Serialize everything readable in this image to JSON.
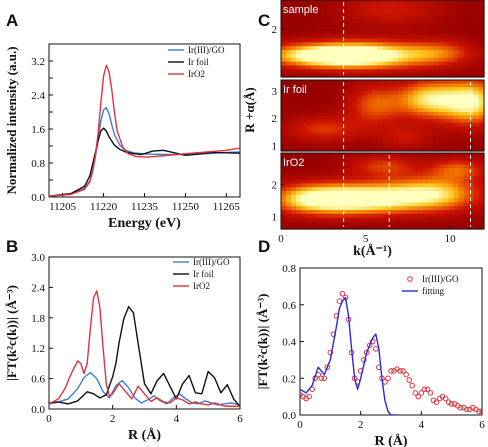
{
  "chart_data": [
    {
      "id": "A",
      "type": "line",
      "panel_label": "A",
      "xlabel": "Energy (eV)",
      "ylabel": "Normalized intensity (a.u.)",
      "xlim": [
        11200,
        11270
      ],
      "ylim": [
        0,
        3.6
      ],
      "xticks": [
        11205,
        11220,
        11235,
        11250,
        11265
      ],
      "yticks": [
        0.0,
        0.4,
        0.8,
        1.2,
        1.6,
        2.0,
        2.4,
        2.8,
        3.2
      ],
      "ytick_labels": [
        "0.0",
        "",
        "0.8",
        "",
        "1.6",
        "",
        "2.4",
        "",
        "3.2"
      ],
      "legend_position": "top-right",
      "series": [
        {
          "name": "Ir(III)/GO",
          "color": "#3b7fd4",
          "x": [
            11200,
            11208,
            11213,
            11215,
            11216,
            11217,
            11218,
            11219,
            11220,
            11221,
            11222,
            11223,
            11224,
            11226,
            11228,
            11231,
            11236,
            11242,
            11250,
            11258,
            11265,
            11270
          ],
          "y": [
            0.02,
            0.07,
            0.2,
            0.38,
            0.62,
            0.95,
            1.35,
            1.78,
            2.05,
            2.1,
            1.96,
            1.7,
            1.46,
            1.22,
            1.1,
            1.04,
            1.01,
            1.0,
            1.0,
            1.02,
            1.05,
            1.06
          ]
        },
        {
          "name": "Ir foil",
          "color": "#111111",
          "x": [
            11200,
            11208,
            11213,
            11215,
            11216,
            11217,
            11218,
            11219,
            11220,
            11221,
            11222,
            11224,
            11226,
            11228,
            11231,
            11234,
            11238,
            11242,
            11246,
            11250,
            11255,
            11260,
            11265,
            11270
          ],
          "y": [
            0.02,
            0.08,
            0.25,
            0.5,
            0.78,
            1.05,
            1.32,
            1.55,
            1.62,
            1.55,
            1.42,
            1.22,
            1.12,
            1.06,
            1.02,
            1.0,
            1.08,
            1.1,
            1.04,
            0.98,
            1.01,
            1.05,
            1.04,
            1.03
          ]
        },
        {
          "name": "IrO2",
          "color": "#e0343c",
          "x": [
            11200,
            11208,
            11213,
            11215,
            11216,
            11217,
            11218,
            11219,
            11220,
            11221,
            11222,
            11223,
            11224,
            11225,
            11227,
            11229,
            11232,
            11236,
            11242,
            11250,
            11258,
            11265,
            11270
          ],
          "y": [
            0.02,
            0.06,
            0.18,
            0.36,
            0.6,
            0.98,
            1.5,
            2.2,
            2.85,
            3.1,
            2.95,
            2.52,
            1.98,
            1.55,
            1.18,
            1.02,
            0.95,
            0.94,
            0.97,
            1.02,
            1.06,
            1.1,
            1.15
          ]
        }
      ]
    },
    {
      "id": "B",
      "type": "line",
      "panel_label": "B",
      "xlabel": "R (Å)",
      "ylabel": "|FT(k²c(k))| (Å⁻³)",
      "xlim": [
        0,
        6
      ],
      "ylim": [
        0,
        3.0
      ],
      "xticks": [
        0,
        2,
        4,
        6
      ],
      "yticks": [
        0.0,
        0.6,
        1.2,
        1.8,
        2.4,
        3.0
      ],
      "ytick_labels": [
        "0.0",
        "0.6",
        "1.2",
        "1.8",
        "2.4",
        "3.0"
      ],
      "legend_position": "top-right",
      "series": [
        {
          "name": "Ir(III)/GO",
          "color": "#3b7fd4",
          "x": [
            0,
            0.3,
            0.6,
            0.9,
            1.1,
            1.3,
            1.5,
            1.7,
            1.9,
            2.1,
            2.3,
            2.5,
            2.7,
            2.9,
            3.1,
            3.3,
            3.5,
            3.7,
            3.9,
            4.1,
            4.3,
            4.5,
            4.7,
            4.9,
            5.1,
            5.3,
            5.5,
            5.7,
            6.0
          ],
          "y": [
            0.1,
            0.14,
            0.2,
            0.4,
            0.62,
            0.72,
            0.6,
            0.34,
            0.22,
            0.46,
            0.56,
            0.42,
            0.22,
            0.12,
            0.18,
            0.26,
            0.16,
            0.1,
            0.22,
            0.3,
            0.2,
            0.12,
            0.1,
            0.16,
            0.12,
            0.08,
            0.1,
            0.12,
            0.08
          ]
        },
        {
          "name": "Ir foil",
          "color": "#111111",
          "x": [
            0,
            0.3,
            0.6,
            0.9,
            1.2,
            1.4,
            1.6,
            1.8,
            2.0,
            2.1,
            2.2,
            2.35,
            2.5,
            2.65,
            2.8,
            3.0,
            3.2,
            3.4,
            3.6,
            3.8,
            4.0,
            4.2,
            4.4,
            4.6,
            4.8,
            5.0,
            5.2,
            5.4,
            5.6,
            5.8,
            6.0
          ],
          "y": [
            0.12,
            0.14,
            0.1,
            0.16,
            0.34,
            0.3,
            0.22,
            0.28,
            0.64,
            0.9,
            1.3,
            1.78,
            2.02,
            1.9,
            1.3,
            0.5,
            0.3,
            0.56,
            0.7,
            0.45,
            0.2,
            0.5,
            0.66,
            0.32,
            0.3,
            0.74,
            0.62,
            0.32,
            0.48,
            0.2,
            0.05
          ]
        },
        {
          "name": "IrO2",
          "color": "#e0343c",
          "x": [
            0,
            0.3,
            0.5,
            0.7,
            0.9,
            1.0,
            1.1,
            1.2,
            1.3,
            1.4,
            1.5,
            1.6,
            1.7,
            1.8,
            1.9,
            2.0,
            2.2,
            2.4,
            2.6,
            2.8,
            3.0,
            3.2,
            3.4,
            3.6,
            3.8,
            4.0,
            4.2,
            4.4,
            4.6,
            4.8,
            5.0,
            5.2,
            5.5,
            6.0
          ],
          "y": [
            0.1,
            0.2,
            0.4,
            0.7,
            0.95,
            0.9,
            0.7,
            0.9,
            1.6,
            2.2,
            2.33,
            2.0,
            1.2,
            0.5,
            0.25,
            0.3,
            0.5,
            0.35,
            0.2,
            0.45,
            0.3,
            0.15,
            0.22,
            0.14,
            0.12,
            0.22,
            0.18,
            0.1,
            0.14,
            0.1,
            0.08,
            0.12,
            0.06,
            0.05
          ]
        }
      ]
    },
    {
      "id": "C",
      "type": "heatmap",
      "panel_label": "C",
      "xlabel": "k(Å⁻¹)",
      "ylabel": "R +α(Å)",
      "xlim": [
        0,
        12
      ],
      "xticks": [
        0,
        5,
        10
      ],
      "subpanels": [
        {
          "label": "sample",
          "ylim": [
            1,
            2.6
          ],
          "yticks": [
            1,
            2
          ],
          "blobs": [
            {
              "x": 2.5,
              "y": 1.45,
              "sx": 2.6,
              "sy": 0.18,
              "v": 1.0
            },
            {
              "x": 5.5,
              "y": 1.45,
              "sx": 2.5,
              "sy": 0.22,
              "v": 0.75
            },
            {
              "x": 9.5,
              "y": 1.5,
              "sx": 1.5,
              "sy": 0.2,
              "v": 0.45
            },
            {
              "x": 6.5,
              "y": 2.4,
              "sx": 2.2,
              "sy": 0.25,
              "v": 0.35
            }
          ],
          "dashes": [
            3.7
          ]
        },
        {
          "label": "Ir foil",
          "ylim": [
            0.8,
            3.4
          ],
          "yticks": [
            1,
            2,
            3
          ],
          "blobs": [
            {
              "x": 11.2,
              "y": 2.6,
              "sx": 1.3,
              "sy": 0.6,
              "v": 1.0
            },
            {
              "x": 8.6,
              "y": 2.7,
              "sx": 1.2,
              "sy": 0.5,
              "v": 0.8
            },
            {
              "x": 5.6,
              "y": 2.5,
              "sx": 1.2,
              "sy": 0.55,
              "v": 0.55
            },
            {
              "x": 2.5,
              "y": 1.6,
              "sx": 1.6,
              "sy": 0.35,
              "v": 0.45
            },
            {
              "x": 7.4,
              "y": 1.3,
              "sx": 1.2,
              "sy": 0.3,
              "v": 0.3
            }
          ],
          "dashes": [
            3.7,
            11.2
          ]
        },
        {
          "label": "IrO2",
          "ylim": [
            0.6,
            3.0
          ],
          "yticks": [
            1,
            2
          ],
          "blobs": [
            {
              "x": 1.8,
              "y": 1.55,
              "sx": 1.8,
              "sy": 0.35,
              "v": 0.9
            },
            {
              "x": 5.0,
              "y": 1.55,
              "sx": 2.0,
              "sy": 0.35,
              "v": 1.0
            },
            {
              "x": 9.0,
              "y": 1.7,
              "sx": 2.0,
              "sy": 0.4,
              "v": 0.9
            },
            {
              "x": 6.0,
              "y": 2.6,
              "sx": 1.5,
              "sy": 0.25,
              "v": 0.45
            },
            {
              "x": 10.5,
              "y": 2.5,
              "sx": 1.2,
              "sy": 0.25,
              "v": 0.5
            }
          ],
          "dashes": [
            3.7,
            6.4,
            11.2
          ]
        }
      ]
    },
    {
      "id": "D",
      "type": "line",
      "panel_label": "D",
      "xlabel": "R (Å)",
      "ylabel": "|FT(k²c(k))| (Å⁻³)",
      "xlim": [
        0,
        6
      ],
      "ylim": [
        0,
        0.8
      ],
      "xticks": [
        0,
        2,
        4,
        6
      ],
      "yticks": [
        0.0,
        0.2,
        0.4,
        0.6,
        0.8
      ],
      "ytick_labels": [
        "0.0",
        "0.2",
        "0.4",
        "0.6",
        "0.8"
      ],
      "legend_position": "top-right",
      "series": [
        {
          "name": "Ir(III)/GO",
          "color": "#e0343c",
          "style": "markers",
          "x": [
            0,
            0.1,
            0.2,
            0.3,
            0.4,
            0.5,
            0.6,
            0.7,
            0.8,
            0.9,
            1.0,
            1.1,
            1.2,
            1.3,
            1.4,
            1.5,
            1.6,
            1.7,
            1.8,
            1.9,
            2.0,
            2.1,
            2.2,
            2.3,
            2.4,
            2.5,
            2.6,
            2.7,
            2.8,
            2.9,
            3.0,
            3.1,
            3.2,
            3.3,
            3.4,
            3.5,
            3.6,
            3.7,
            3.8,
            3.9,
            4.0,
            4.1,
            4.2,
            4.3,
            4.4,
            4.5,
            4.6,
            4.7,
            4.8,
            4.9,
            5.0,
            5.1,
            5.2,
            5.3,
            5.4,
            5.5,
            5.6,
            5.7,
            5.8,
            5.9,
            6.0
          ],
          "y": [
            0.11,
            0.1,
            0.09,
            0.1,
            0.14,
            0.2,
            0.22,
            0.2,
            0.2,
            0.26,
            0.34,
            0.44,
            0.54,
            0.62,
            0.66,
            0.64,
            0.52,
            0.34,
            0.2,
            0.18,
            0.24,
            0.3,
            0.34,
            0.38,
            0.4,
            0.36,
            0.26,
            0.2,
            0.18,
            0.2,
            0.24,
            0.24,
            0.25,
            0.24,
            0.24,
            0.22,
            0.19,
            0.16,
            0.12,
            0.1,
            0.12,
            0.14,
            0.14,
            0.12,
            0.08,
            0.07,
            0.09,
            0.1,
            0.09,
            0.07,
            0.06,
            0.06,
            0.05,
            0.04,
            0.04,
            0.03,
            0.03,
            0.04,
            0.03,
            0.02,
            0.02
          ]
        },
        {
          "name": "fitting",
          "color": "#2a2ad8",
          "style": "line",
          "x": [
            0,
            0.2,
            0.4,
            0.6,
            0.8,
            1.0,
            1.2,
            1.3,
            1.4,
            1.5,
            1.6,
            1.7,
            1.8,
            1.9,
            2.0,
            2.2,
            2.4,
            2.5,
            2.6,
            2.7,
            2.8,
            2.9,
            3.0,
            3.2
          ],
          "y": [
            0.14,
            0.12,
            0.16,
            0.26,
            0.22,
            0.3,
            0.48,
            0.58,
            0.62,
            0.64,
            0.54,
            0.36,
            0.2,
            0.14,
            0.2,
            0.34,
            0.42,
            0.44,
            0.36,
            0.2,
            0.08,
            0.02,
            0.0,
            0.0
          ]
        }
      ]
    }
  ]
}
